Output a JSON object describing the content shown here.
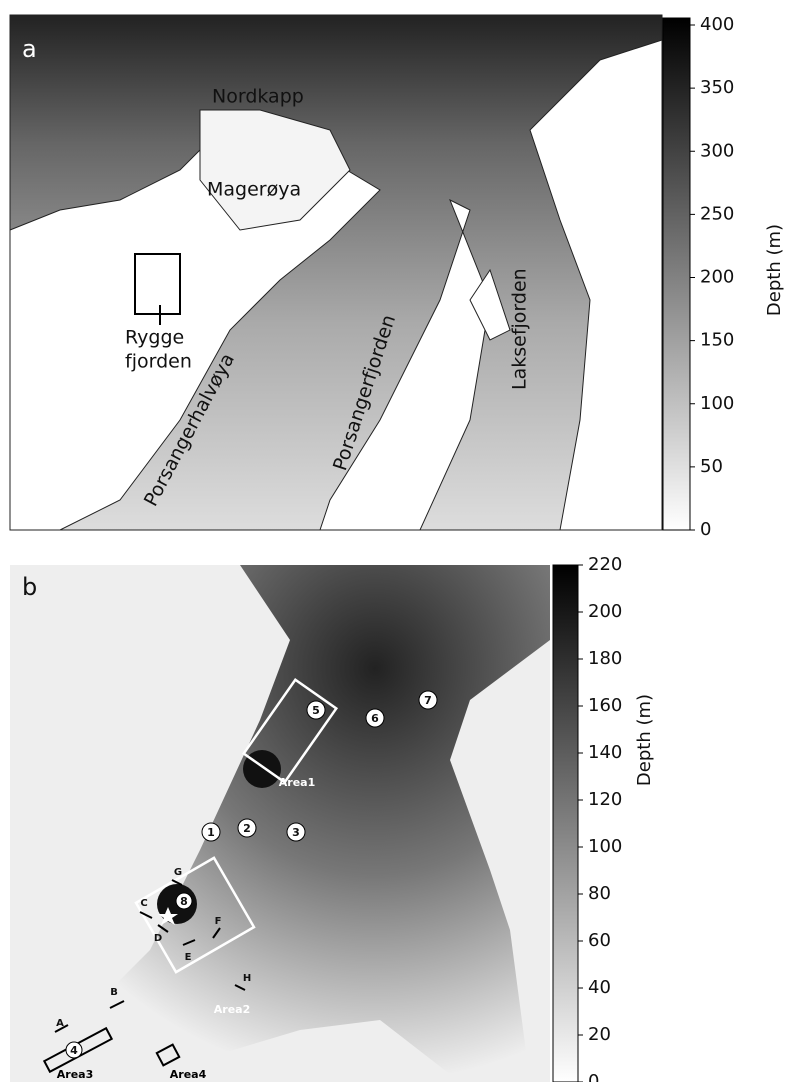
{
  "panels": [
    {
      "label": "a",
      "places": [
        "Nordkapp",
        "Magerøya",
        "Rygge",
        "fjorden",
        "Porsangerhalvøya",
        "Porsangerfjorden",
        "Laksefjorden"
      ],
      "colorbar": {
        "label": "Depth (m)",
        "lim": [
          0,
          400
        ],
        "ticks": [
          0,
          50,
          100,
          150,
          200,
          250,
          300,
          350,
          400
        ]
      }
    },
    {
      "label": "b",
      "stations": [
        "1",
        "2",
        "3",
        "4",
        "5",
        "6",
        "7",
        "8"
      ],
      "areas": [
        "Area1",
        "Area2",
        "Area3",
        "Area4"
      ],
      "transects": [
        "A",
        "B",
        "C",
        "D",
        "E",
        "F",
        "G",
        "H"
      ],
      "colorbar": {
        "label": "Depth (m)",
        "lim": [
          0,
          220
        ],
        "ticks": [
          0,
          20,
          40,
          60,
          80,
          100,
          120,
          140,
          160,
          180,
          200,
          220
        ]
      }
    }
  ]
}
